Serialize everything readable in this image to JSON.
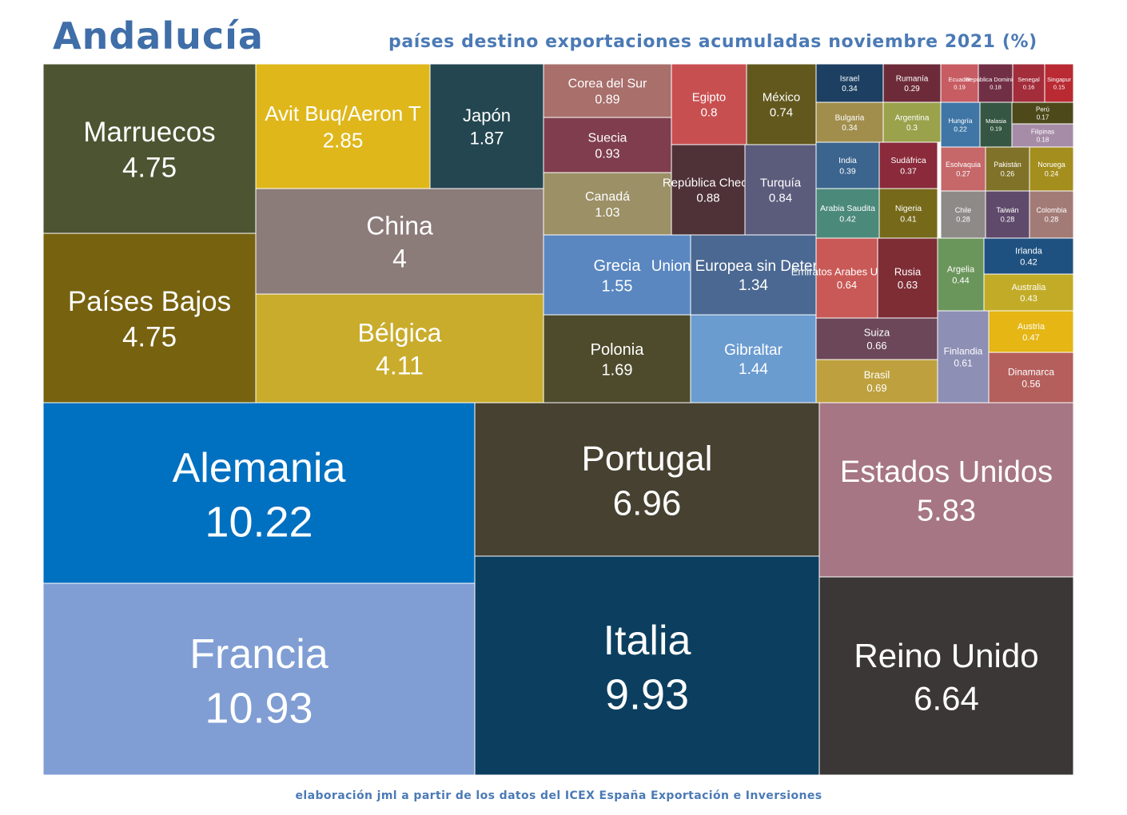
{
  "header": {
    "title": "Andalucía",
    "subtitle": "países destino exportaciones acumuladas noviembre 2021 (%)"
  },
  "footer": {
    "source": "elaboración jml a partir de los datos del ICEX España Exportación e Inversiones"
  },
  "chart_data": {
    "type": "treemap",
    "title": "Andalucía",
    "subtitle": "países destino exportaciones acumuladas noviembre 2021 (%)",
    "unit": "%",
    "items": [
      {
        "name": "Francia",
        "value": "10.93",
        "color": "#809ed4"
      },
      {
        "name": "Alemania",
        "value": "10.22",
        "color": "#0070c0"
      },
      {
        "name": "Italia",
        "value": "9.93",
        "color": "#0c3f5f"
      },
      {
        "name": "Portugal",
        "value": "6.96",
        "color": "#474131"
      },
      {
        "name": "Reino Unido",
        "value": "6.64",
        "color": "#3b3737"
      },
      {
        "name": "Estados Unidos",
        "value": "5.83",
        "color": "#a67684"
      },
      {
        "name": "Marruecos",
        "value": "4.75",
        "color": "#4d5431"
      },
      {
        "name": "Países Bajos",
        "value": "4.75",
        "color": "#776210"
      },
      {
        "name": "Bélgica",
        "value": "4.11",
        "color": "#c9ac2c"
      },
      {
        "name": "China",
        "value": "4",
        "color": "#8b7b79"
      },
      {
        "name": "Avit Buq/Aeron T",
        "value": "2.85",
        "color": "#dfb71b"
      },
      {
        "name": "Japón",
        "value": "1.87",
        "color": "#234650"
      },
      {
        "name": "Polonia",
        "value": "1.69",
        "color": "#4e4b2c"
      },
      {
        "name": "Grecia",
        "value": "1.55",
        "color": "#5a87c0"
      },
      {
        "name": "Gibraltar",
        "value": "1.44",
        "color": "#6b9cd0"
      },
      {
        "name": "Union Europea sin Determinar",
        "value": "1.34",
        "color": "#4a6891"
      },
      {
        "name": "Canadá",
        "value": "1.03",
        "color": "#9c9066"
      },
      {
        "name": "Suecia",
        "value": "0.93",
        "color": "#7f3d4d"
      },
      {
        "name": "Corea del Sur",
        "value": "0.89",
        "color": "#a86f6b"
      },
      {
        "name": "República Checa",
        "value": "0.88",
        "color": "#4e3238"
      },
      {
        "name": "Turquía",
        "value": "0.84",
        "color": "#5b5b7c"
      },
      {
        "name": "Egipto",
        "value": "0.8",
        "color": "#c84f50"
      },
      {
        "name": "México",
        "value": "0.74",
        "color": "#62581e"
      },
      {
        "name": "Brasil",
        "value": "0.69",
        "color": "#bea13e"
      },
      {
        "name": "Suiza",
        "value": "0.66",
        "color": "#6b4759"
      },
      {
        "name": "Emiratos Arabes Unidos",
        "value": "0.64",
        "color": "#c95956"
      },
      {
        "name": "Rusia",
        "value": "0.63",
        "color": "#7e2d35"
      },
      {
        "name": "Finlandia",
        "value": "0.61",
        "color": "#8d8fb5"
      },
      {
        "name": "Dinamarca",
        "value": "0.56",
        "color": "#b45f5c"
      },
      {
        "name": "Austria",
        "value": "0.47",
        "color": "#e5b614"
      },
      {
        "name": "Argelia",
        "value": "0.44",
        "color": "#6b965b"
      },
      {
        "name": "Australia",
        "value": "0.43",
        "color": "#c2ac27"
      },
      {
        "name": "Irlanda",
        "value": "0.42",
        "color": "#1f5180"
      },
      {
        "name": "Arabia Saudita",
        "value": "0.42",
        "color": "#4b897b"
      },
      {
        "name": "Nigeria",
        "value": "0.41",
        "color": "#76691a"
      },
      {
        "name": "India",
        "value": "0.39",
        "color": "#3b648e"
      },
      {
        "name": "Sudáfrica",
        "value": "0.37",
        "color": "#8a2a3b"
      },
      {
        "name": "Israel",
        "value": "0.34",
        "color": "#1c3f62"
      },
      {
        "name": "Bulgaria",
        "value": "0.34",
        "color": "#a18e4c"
      },
      {
        "name": "Argentina",
        "value": "0.3",
        "color": "#9aa24b"
      },
      {
        "name": "Rumanía",
        "value": "0.29",
        "color": "#6d2b39"
      },
      {
        "name": "Chile",
        "value": "0.28",
        "color": "#8d8a88"
      },
      {
        "name": "Taiwán",
        "value": "0.28",
        "color": "#5f4a6b"
      },
      {
        "name": "Colombia",
        "value": "0.28",
        "color": "#a37b76"
      },
      {
        "name": "Esolvaquia",
        "value": "0.27",
        "color": "#c66769"
      },
      {
        "name": "Pakistán",
        "value": "0.26",
        "color": "#807228"
      },
      {
        "name": "Noruega",
        "value": "0.24",
        "color": "#a48e1d"
      },
      {
        "name": "Hungría",
        "value": "0.22",
        "color": "#3f76a6"
      },
      {
        "name": "Ecuador",
        "value": "0.19",
        "color": "#c75d63"
      },
      {
        "name": "Malasia",
        "value": "0.19",
        "color": "#355642"
      },
      {
        "name": "República Dominicana",
        "value": "0.18",
        "color": "#712f45"
      },
      {
        "name": "Filipinas",
        "value": "0.18",
        "color": "#a78ca7"
      },
      {
        "name": "Perú",
        "value": "0.17",
        "color": "#4d491a"
      },
      {
        "name": "Senegal",
        "value": "0.16",
        "color": "#a32d3a"
      },
      {
        "name": "Singapur",
        "value": "0.15",
        "color": "#b92a33"
      }
    ]
  }
}
